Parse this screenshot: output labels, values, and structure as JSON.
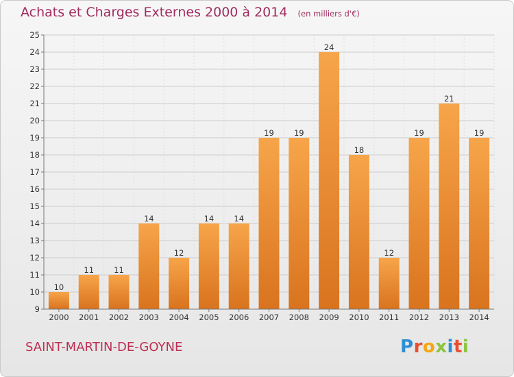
{
  "header": {
    "title": "Achats et Charges Externes 2000 à 2014",
    "unit": "(en milliers d'€)"
  },
  "footer": {
    "commune": "SAINT-MARTIN-DE-GOYNE",
    "logo": [
      "P",
      "r",
      "o",
      "x",
      "i",
      "t",
      "i"
    ]
  },
  "colors": {
    "title": "#a02c60",
    "commune": "#bf2f55",
    "bar_light": "#f7a54a",
    "bar_dark": "#d9731e",
    "grid": "#cccccc"
  },
  "chart_data": {
    "type": "bar",
    "title": "Achats et Charges Externes 2000 à 2014",
    "unit": "(en milliers d'€)",
    "categories": [
      "2000",
      "2001",
      "2002",
      "2003",
      "2004",
      "2005",
      "2006",
      "2007",
      "2008",
      "2009",
      "2010",
      "2011",
      "2012",
      "2013",
      "2014"
    ],
    "values": [
      10,
      11,
      11,
      14,
      12,
      14,
      14,
      19,
      19,
      24,
      18,
      12,
      19,
      21,
      19
    ],
    "ylim": [
      9,
      25
    ],
    "yticks": [
      9,
      10,
      11,
      12,
      13,
      14,
      15,
      16,
      17,
      18,
      19,
      20,
      21,
      22,
      23,
      24,
      25
    ],
    "grid": true,
    "data_labels": true
  }
}
